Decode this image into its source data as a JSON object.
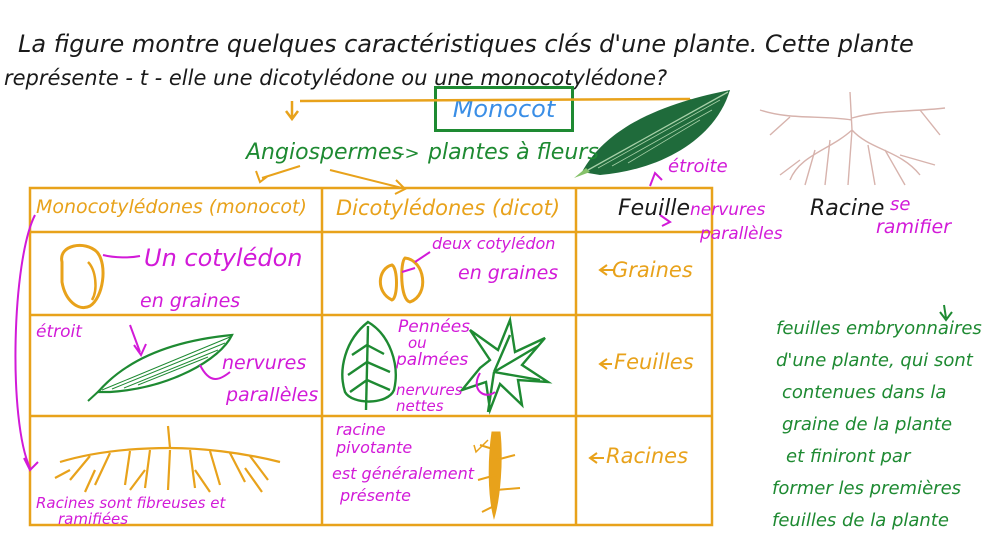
{
  "question": {
    "line1": "La figure montre quelques caractéristiques clés d'une plante. Cette plante",
    "line2": "représente - t - elle une dicotylédone ou une monocotylédone?"
  },
  "answer_box": "Monocot",
  "top": {
    "angiosperms": "Angiospermes",
    "arrow": "->",
    "flowering": "plantes à fleurs"
  },
  "table": {
    "header_monocot": "Monocotylédones (monocot)",
    "header_dicot": "Dicotylédones (dicot)",
    "monocot_seed": [
      "Un cotylédon",
      "en graines"
    ],
    "dicot_seed": [
      "deux cotylédon",
      "en graines"
    ],
    "monocot_leaf_narrow": "étroit",
    "monocot_leaf_veins": [
      "nervures",
      "parallèles"
    ],
    "dicot_leaf_types": [
      "Pennées",
      "ou",
      "palmées"
    ],
    "dicot_leaf_veins": [
      "nervures",
      "nettes"
    ],
    "dicot_root": [
      "racine",
      "pivotante",
      "est généralement",
      "présente"
    ],
    "monocot_root": [
      "Racines sont fibreuses et",
      "ramifiées"
    ]
  },
  "row_labels": {
    "seeds": "Graines",
    "leaves": "Feuilles",
    "roots": "Racines"
  },
  "figure": {
    "leaf_label": "Feuille",
    "leaf_narrow": "étroite",
    "leaf_veins": [
      "nervures",
      "parallèles"
    ],
    "root_label": "Racine",
    "root_note": [
      "se",
      "ramifier"
    ]
  },
  "side_note": [
    "feuilles embryonnaires",
    "d'une plante, qui sont",
    "contenues dans la",
    "graine de la plante",
    "et finiront par",
    "former les premières",
    "feuilles de la plante"
  ],
  "colors": {
    "orange": "#e8a21b",
    "green": "#1e8a32",
    "magenta": "#d21ad8",
    "blue": "#3a8ee6",
    "black": "#1a1a1a"
  }
}
